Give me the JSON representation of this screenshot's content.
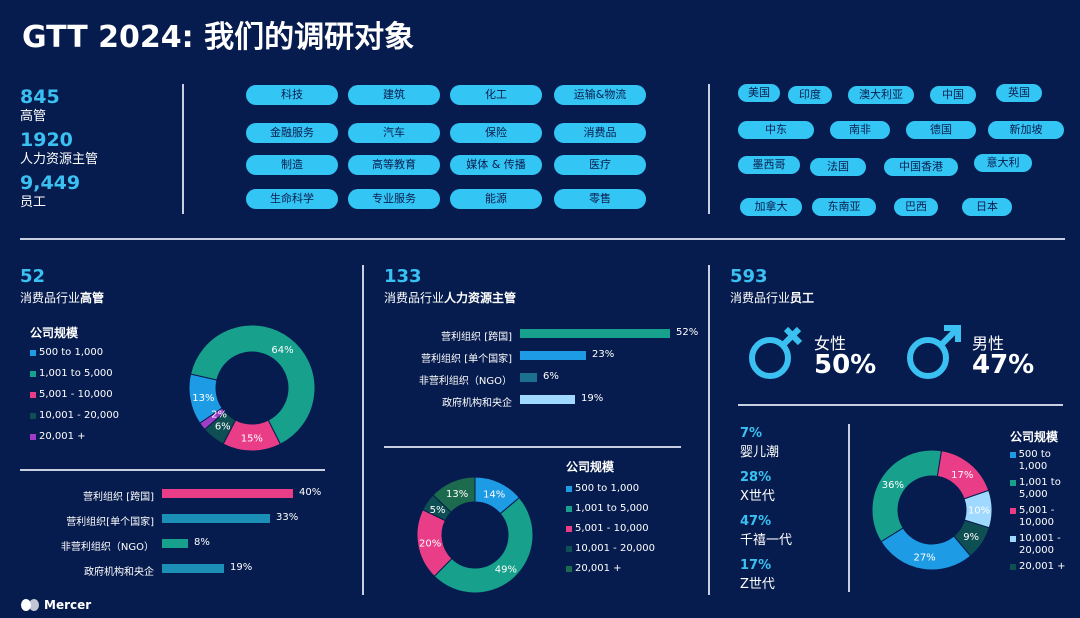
{
  "title": "GTT 2024: 我们的调研对象",
  "stats": [
    {
      "value": "845",
      "label": "高管"
    },
    {
      "value": "1920",
      "label": "人力资源主管"
    },
    {
      "value": "9,449",
      "label": "员工"
    }
  ],
  "industries": [
    "科技",
    "建筑",
    "化工",
    "运输&物流",
    "金融服务",
    "汽车",
    "保险",
    "消费品",
    "制造",
    "高等教育",
    "媒体 & 传播",
    "医疗",
    "生命科学",
    "专业服务",
    "能源",
    "零售"
  ],
  "countries": [
    "美国",
    "印度",
    "澳大利亚",
    "中国",
    "英国",
    "中东",
    "南非",
    "德国",
    "新加坡",
    "墨西哥",
    "法国",
    "中国香港",
    "意大利",
    "加拿大",
    "东南亚",
    "巴西",
    "日本"
  ],
  "colors": {
    "bg": "#071c4e",
    "accent": "#3bc0f2",
    "s1": "#1e9be5",
    "s2": "#17a08c",
    "s3": "#e93d88",
    "s4": "#0e4f53",
    "s5": "#a03dc8",
    "s5b": "#1d6b4f",
    "lightblue": "#9fd9ff",
    "bar_pink": "#e93d88",
    "bar_teal": "#1c8fb6"
  },
  "exec": {
    "count": "52",
    "subtitle_prefix": "消费品行业",
    "subtitle_bold": "高管",
    "legend_title": "公司规模",
    "legend": [
      "500 to 1,000",
      "1,001 to 5,000",
      "5,001 - 10,000",
      "10,001 - 20,000",
      "20,001 +"
    ],
    "bars": [
      {
        "label": "营利组织 [跨国]",
        "value": 40,
        "text": "40%"
      },
      {
        "label": "营利组织[单个国家]",
        "value": 33,
        "text": "33%"
      },
      {
        "label": "非营利组织（NGO）",
        "value": 8,
        "text": "8%"
      },
      {
        "label": "政府机构和央企",
        "value": 19,
        "text": "19%"
      }
    ]
  },
  "hr": {
    "count": "133",
    "subtitle_prefix": "消费品行业",
    "subtitle_bold": "人力资源主管",
    "legend_title": "公司规模",
    "legend": [
      "500 to 1,000",
      "1,001 to 5,000",
      "5,001 - 10,000",
      "10,001 - 20,000",
      "20,001 +"
    ],
    "bars": [
      {
        "label": "营利组织 [跨国]",
        "value": 52,
        "text": "52%"
      },
      {
        "label": "营利组织 [单个国家]",
        "value": 23,
        "text": "23%"
      },
      {
        "label": "非营利组织（NGO）",
        "value": 6,
        "text": "6%"
      },
      {
        "label": "政府机构和央企",
        "value": 19,
        "text": "19%"
      }
    ]
  },
  "emp": {
    "count": "593",
    "subtitle_prefix": "消费品行业",
    "subtitle_bold": "员工",
    "female_label": "女性",
    "female_pct": "50%",
    "male_label": "男性",
    "male_pct": "47%",
    "generations": [
      {
        "pct": "7%",
        "name": "婴儿潮"
      },
      {
        "pct": "28%",
        "name": "X世代"
      },
      {
        "pct": "47%",
        "name": "千禧一代"
      },
      {
        "pct": "17%",
        "name": "Z世代"
      }
    ],
    "legend_title": "公司规模",
    "legend": [
      "500 to 1,000",
      "1,001 to\n5,000",
      "5,001 -\n10,000",
      "10,001 -\n20,000",
      "20,001 +"
    ]
  },
  "chart_data": [
    {
      "type": "pie",
      "title": "消费品行业高管 公司规模",
      "categories": [
        "500 to 1,000",
        "1,001 to 5,000",
        "5,001 - 10,000",
        "10,001 - 20,000",
        "20,001 +"
      ],
      "values": [
        13,
        64,
        15,
        6,
        2
      ],
      "labels": [
        "13%",
        "64%",
        "15%",
        "6%",
        "2%"
      ]
    },
    {
      "type": "bar",
      "title": "消费品行业高管",
      "categories": [
        "营利组织 [跨国]",
        "营利组织[单个国家]",
        "非营利组织（NGO）",
        "政府机构和央企"
      ],
      "values": [
        40,
        33,
        8,
        19
      ]
    },
    {
      "type": "bar",
      "title": "消费品行业人力资源主管",
      "categories": [
        "营利组织 [跨国]",
        "营利组织 [单个国家]",
        "非营利组织（NGO）",
        "政府机构和央企"
      ],
      "values": [
        52,
        23,
        6,
        19
      ]
    },
    {
      "type": "pie",
      "title": "消费品行业人力资源主管 公司规模",
      "categories": [
        "500 to 1,000",
        "1,001 to 5,000",
        "5,001 - 10,000",
        "10,001 - 20,000",
        "20,001 +"
      ],
      "values": [
        14,
        49,
        20,
        5,
        13
      ],
      "labels": [
        "14%",
        "49%",
        "20%",
        "5%",
        "13%"
      ]
    },
    {
      "type": "pie",
      "title": "消费品行业员工 公司规模",
      "categories": [
        "500 to 1,000",
        "1,001 to 5,000",
        "5,001 - 10,000",
        "10,001 - 20,000",
        "20,001 +"
      ],
      "values": [
        27,
        36,
        17,
        10,
        9
      ],
      "labels": [
        "27%",
        "36%",
        "17%",
        "10%",
        "9%"
      ]
    }
  ],
  "logo": "Mercer"
}
